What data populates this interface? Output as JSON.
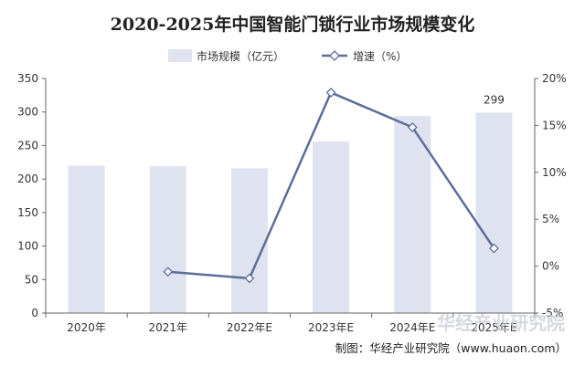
{
  "chart_data": {
    "type": "bar",
    "title": "2020-2025年中国智能门锁行业市场规模变化",
    "categories": [
      "2020年",
      "2021年",
      "2022年E",
      "2023年E",
      "2024年E",
      "2025年E"
    ],
    "series": [
      {
        "name": "市场规模（亿元）",
        "type": "bar",
        "axis": "left",
        "color": "#dfe3ef",
        "values": [
          220,
          219,
          216,
          256,
          294,
          299
        ]
      },
      {
        "name": "增速（%）",
        "type": "line",
        "axis": "right",
        "color": "#5b6e99",
        "values": [
          null,
          -0.6,
          -1.3,
          18.5,
          14.8,
          1.9
        ]
      }
    ],
    "data_labels": [
      {
        "category": "2025年E",
        "text": "299"
      }
    ],
    "y_left": {
      "min": 0,
      "max": 350,
      "ticks": [
        "0",
        "50",
        "100",
        "150",
        "200",
        "250",
        "300",
        "350"
      ]
    },
    "y_right": {
      "min": -5,
      "max": 20,
      "ticks": [
        "-5%",
        "0%",
        "5%",
        "10%",
        "15%",
        "20%"
      ]
    },
    "legend_position": "top",
    "grid": false,
    "source": "制图：华经产业研究院（www.huaon.com）",
    "watermark": "华经产业研究院"
  }
}
